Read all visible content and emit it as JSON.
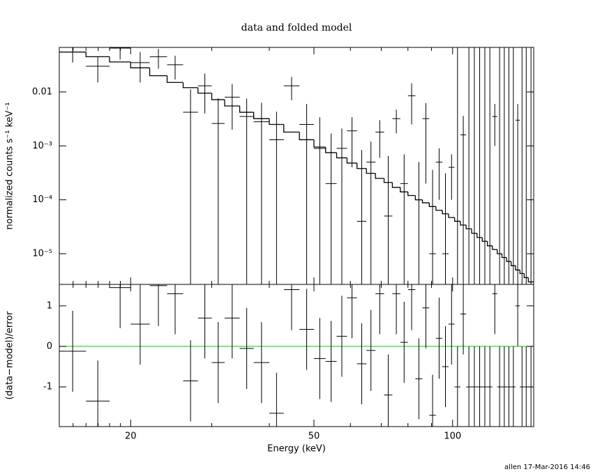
{
  "chart_data": {
    "type": "spectrum_residuals",
    "title": "data and folded model",
    "xlabel": "Energy (keV)",
    "footer": "allen 17-Mar-2016 14:46",
    "xscale": "log",
    "xlim": [
      14,
      150
    ],
    "xticks": [
      20,
      50,
      100
    ],
    "x_minor_ticks": [
      15,
      16,
      17,
      18,
      19,
      30,
      40,
      60,
      70,
      80,
      90
    ],
    "bins": [
      14,
      16,
      18,
      20,
      22,
      24,
      26,
      28,
      30,
      32,
      34.5,
      37,
      40,
      43,
      46.5,
      50,
      53,
      56,
      59,
      62,
      65,
      68,
      71,
      74,
      77,
      80,
      83,
      86,
      89,
      92,
      95,
      98,
      101,
      104,
      107,
      110,
      113,
      116,
      119,
      122,
      125,
      128,
      131,
      134,
      137,
      140,
      143,
      146,
      150
    ],
    "top": {
      "ylabel": "normalized counts s⁻¹ keV⁻¹",
      "yscale": "log",
      "ylim": [
        2.7e-06,
        0.067
      ],
      "yticks": [
        {
          "value": 1e-05,
          "label": "10⁻⁵"
        },
        {
          "value": 0.0001,
          "label": "10⁻⁴"
        },
        {
          "value": 0.001,
          "label": "10⁻³"
        },
        0.01
      ],
      "data": {
        "color": "#000000",
        "values": [
          0.055,
          0.03,
          0.065,
          0.035,
          0.045,
          0.032,
          0.0042,
          0.013,
          0.0026,
          0.008,
          0.0035,
          0.0028,
          0.0013,
          0.013,
          0.0025,
          0.0009,
          0.0002,
          0.0009,
          0.0019,
          4e-05,
          0.0005,
          0.0018,
          5e-05,
          0.0032,
          0.0002,
          0.0085,
          0.0001,
          0.0032,
          1e-05,
          0.0005,
          1e-05,
          0.0004,
          1e-06,
          0.0016,
          1e-06,
          1e-06,
          1e-06,
          1e-06,
          1e-06,
          0.0035,
          1e-06,
          1e-06,
          1e-06,
          1e-06,
          0.003,
          1e-06,
          1e-06,
          1e-06
        ],
        "errors": [
          0.02,
          0.015,
          0.025,
          0.02,
          0.018,
          0.015,
          0.007,
          0.009,
          0.005,
          0.006,
          0.004,
          0.0035,
          0.003,
          0.006,
          0.0035,
          0.0025,
          0.0015,
          0.0012,
          0.0015,
          0.0008,
          0.0007,
          0.0012,
          0.0006,
          0.0015,
          0.0005,
          0.006,
          0.0004,
          0.003,
          0.00035,
          0.0004,
          0.0003,
          0.0003,
          0.1,
          0.002,
          0.1,
          0.1,
          0.1,
          0.1,
          0.1,
          0.0025,
          0.1,
          0.1,
          0.1,
          0.1,
          0.003,
          0.1,
          0.1,
          0.1
        ]
      },
      "model": {
        "color": "#000000",
        "values": [
          0.055,
          0.045,
          0.036,
          0.028,
          0.02,
          0.015,
          0.012,
          0.0095,
          0.0072,
          0.0055,
          0.0042,
          0.0032,
          0.0025,
          0.0018,
          0.0013,
          0.00095,
          0.00075,
          0.0006,
          0.00048,
          0.00038,
          0.00031,
          0.00025,
          0.00021,
          0.00017,
          0.00014,
          0.00012,
          0.0001,
          8.8e-05,
          7.5e-05,
          6.4e-05,
          5.5e-05,
          4.7e-05,
          4e-05,
          3.4e-05,
          2.9e-05,
          2.4e-05,
          2e-05,
          1.7e-05,
          1.4e-05,
          1.2e-05,
          1e-05,
          8.5e-06,
          7.2e-06,
          6e-06,
          5e-06,
          4.3e-06,
          3.6e-06,
          3e-06
        ]
      }
    },
    "bottom": {
      "ylabel": "(data−model)/error",
      "ylim": [
        -1.98,
        1.53
      ],
      "yticks": [
        -1,
        0,
        1
      ],
      "reference_line": {
        "value": 0,
        "color": "#00cc00"
      },
      "color": "#000000",
      "values": [
        -0.12,
        -1.35,
        1.45,
        0.55,
        1.5,
        1.3,
        -0.85,
        0.7,
        -0.4,
        0.7,
        -0.05,
        -0.4,
        -1.65,
        1.4,
        0.42,
        -0.3,
        -0.37,
        0.25,
        1.2,
        -0.43,
        -0.1,
        1.3,
        -1.2,
        1.3,
        0.1,
        1.4,
        -0.8,
        0.95,
        -1.7,
        0.2,
        -0.5,
        0.55,
        -1,
        0.8,
        -1,
        -1,
        -1,
        -1,
        -1,
        1.3,
        -1,
        -1,
        -1,
        -1,
        1.0,
        -1,
        -1,
        -1
      ],
      "errors": [
        1,
        1,
        1,
        1,
        1,
        1,
        1,
        1,
        1,
        1,
        1,
        1,
        1,
        1,
        1,
        1,
        1,
        1,
        1,
        1,
        1,
        1,
        1,
        1,
        1,
        1,
        1,
        1,
        1,
        1,
        1,
        1,
        1,
        1,
        1,
        1,
        1,
        1,
        1,
        1,
        1,
        1,
        1,
        1,
        1,
        1,
        1,
        1
      ]
    }
  }
}
